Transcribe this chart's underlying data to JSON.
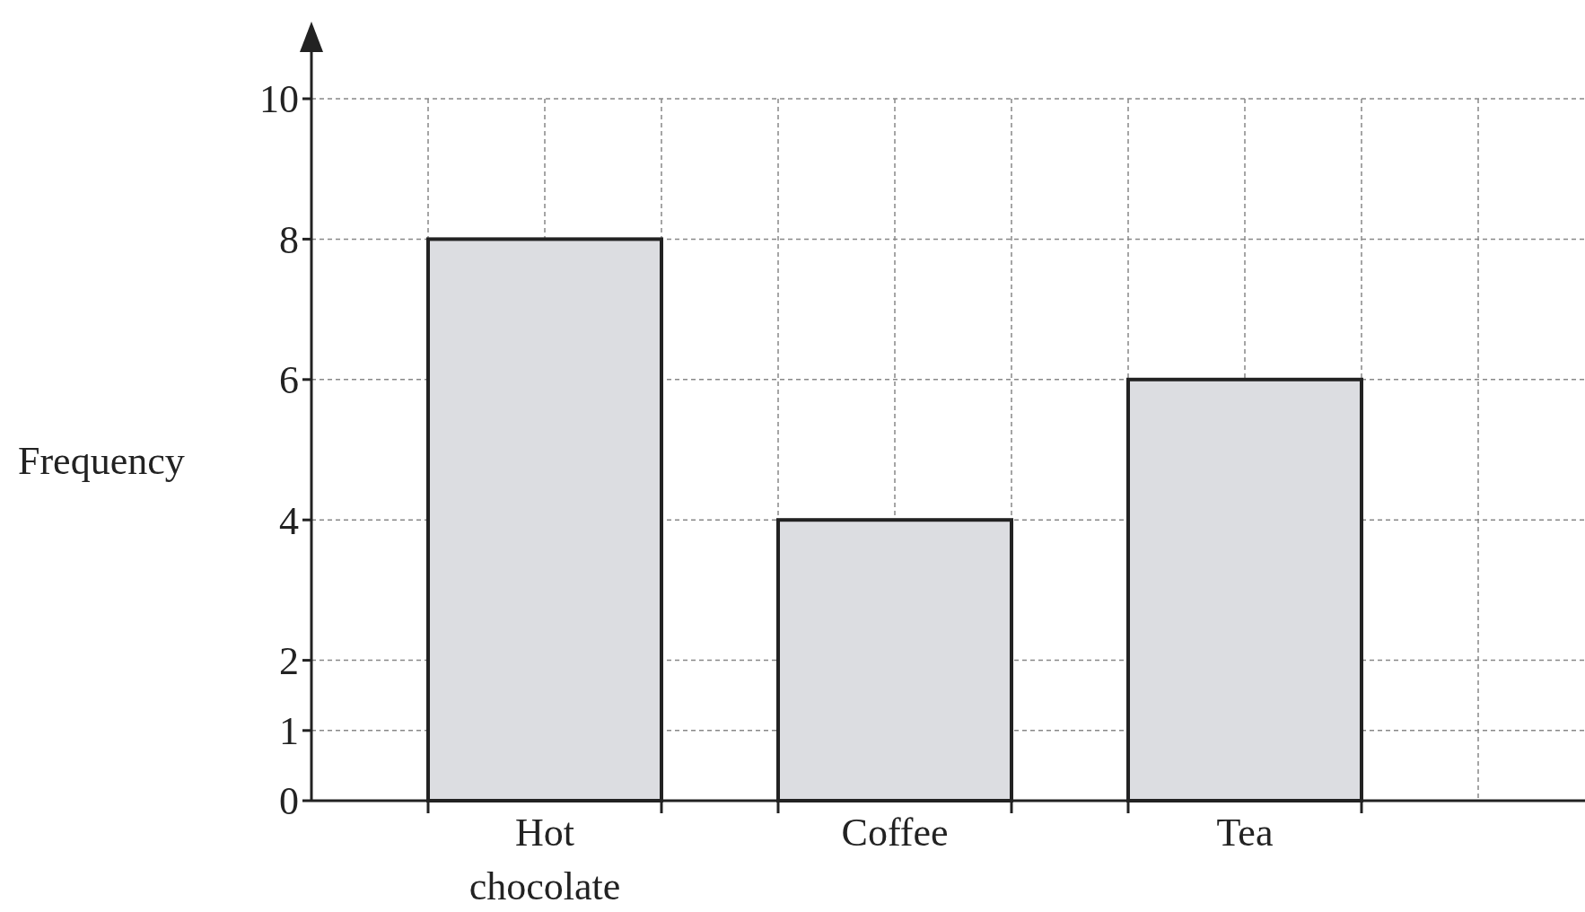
{
  "chart_data": {
    "type": "bar",
    "ylabel": "Frequency",
    "categories": [
      "Hot chocolate",
      "Coffee",
      "Tea"
    ],
    "values": [
      8,
      4,
      6
    ],
    "color": "#dcdde1",
    "ylim": [
      0,
      10
    ],
    "yticks": [
      0,
      1,
      2,
      4,
      6,
      8,
      10
    ],
    "grid": true
  }
}
